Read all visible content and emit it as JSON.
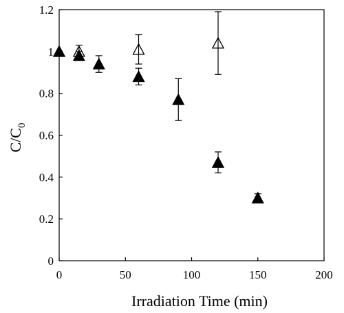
{
  "chart_data": {
    "type": "scatter",
    "title": "",
    "xlabel": "Irradiation Time (min)",
    "ylabel": {
      "main": "C/C",
      "subscript": "0"
    },
    "xlim": [
      0,
      200
    ],
    "ylim": [
      0,
      1.2
    ],
    "x_ticks": [
      0,
      50,
      100,
      150,
      200
    ],
    "y_ticks": [
      0,
      0.2,
      0.4,
      0.6,
      0.8,
      1,
      1.2
    ],
    "x_tick_labels": [
      "0",
      "50",
      "100",
      "150",
      "200"
    ],
    "y_tick_labels": [
      "0",
      "0.2",
      "0.4",
      "0.6",
      "0.8",
      "1",
      "1.2"
    ],
    "grid": false,
    "legend": "none",
    "series": [
      {
        "marker": "triangle-open",
        "color": "#000000",
        "points": [
          {
            "x": 0,
            "y": 1.0,
            "err_up": 0,
            "err_down": 0
          },
          {
            "x": 15,
            "y": 1.0,
            "err_up": 0.03,
            "err_down": 0.03
          },
          {
            "x": 60,
            "y": 1.01,
            "err_up": 0.07,
            "err_down": 0.07
          },
          {
            "x": 120,
            "y": 1.04,
            "err_up": 0.15,
            "err_down": 0.15
          }
        ]
      },
      {
        "marker": "triangle-filled",
        "color": "#000000",
        "points": [
          {
            "x": 0,
            "y": 1.0,
            "err_up": 0,
            "err_down": 0
          },
          {
            "x": 15,
            "y": 0.98,
            "err_up": 0.02,
            "err_down": 0.02
          },
          {
            "x": 30,
            "y": 0.94,
            "err_up": 0.04,
            "err_down": 0.04
          },
          {
            "x": 60,
            "y": 0.88,
            "err_up": 0.04,
            "err_down": 0.04
          },
          {
            "x": 90,
            "y": 0.77,
            "err_up": 0.1,
            "err_down": 0.1
          },
          {
            "x": 120,
            "y": 0.47,
            "err_up": 0.05,
            "err_down": 0.05
          },
          {
            "x": 150,
            "y": 0.3,
            "err_up": 0.02,
            "err_down": 0.02
          }
        ]
      }
    ]
  }
}
